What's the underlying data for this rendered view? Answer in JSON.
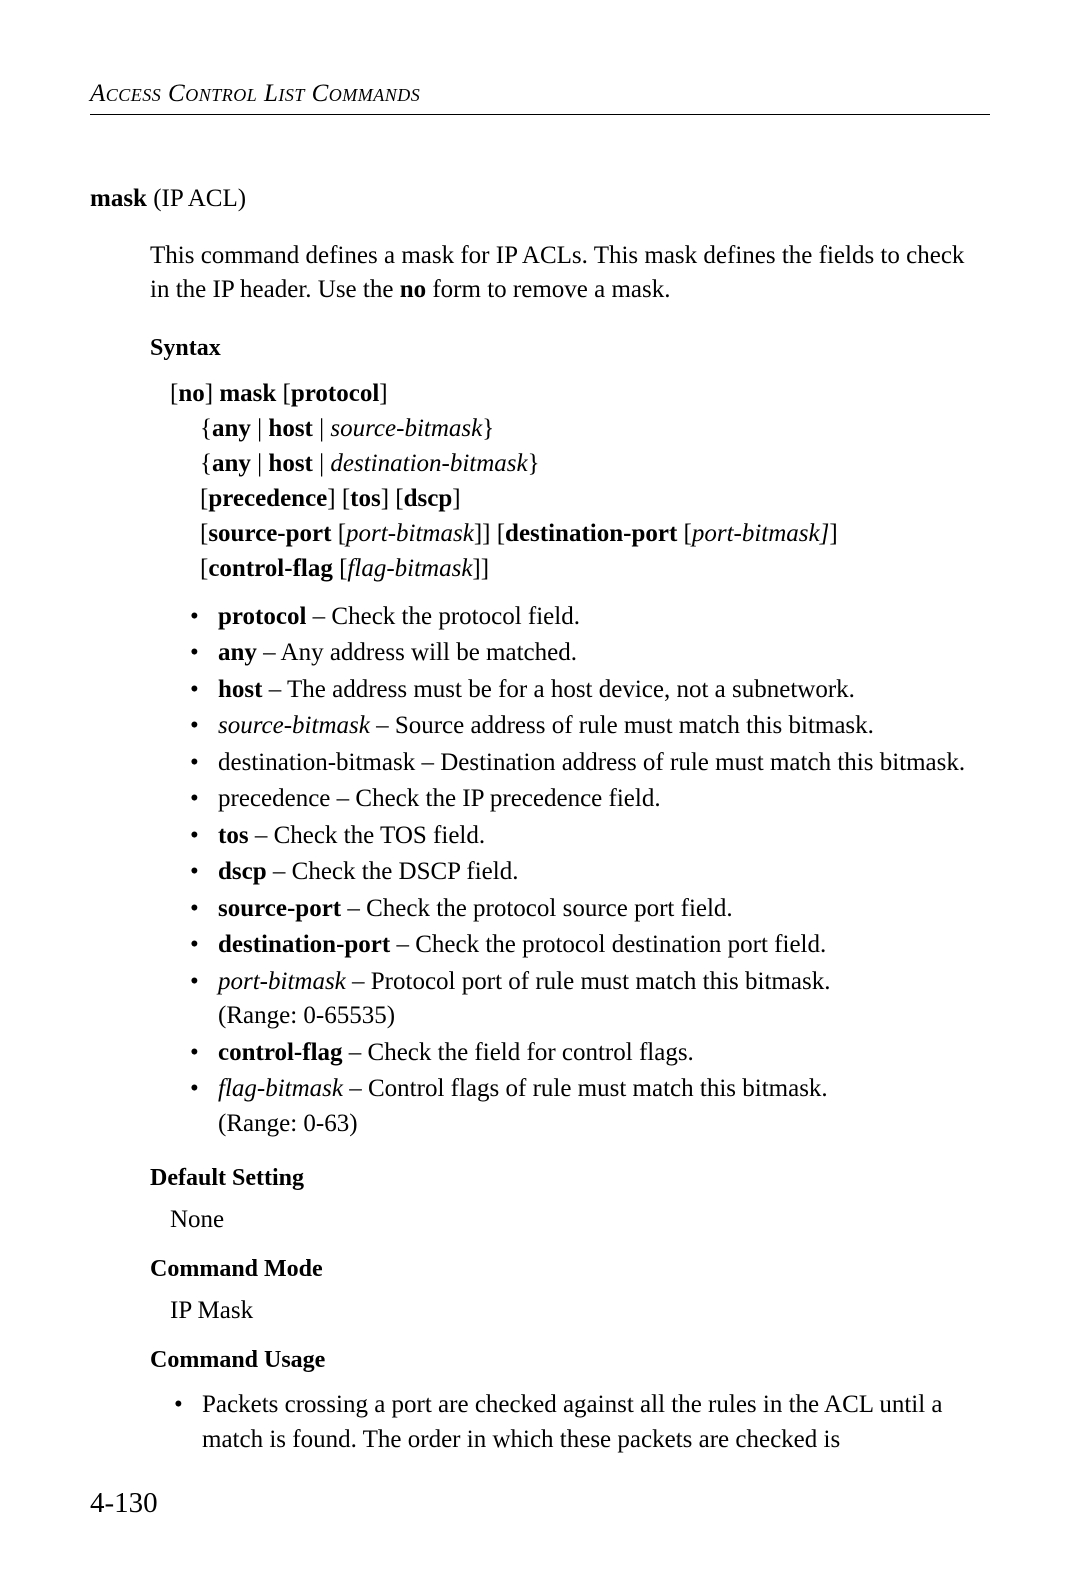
{
  "running_head": "Access Control List Commands",
  "title": {
    "cmd": "mask",
    "qual": " (IP ACL)"
  },
  "description_pre": "This command defines a mask for IP ACLs. This mask defines the fields to check in the IP header. Use the ",
  "description_bold": "no",
  "description_post": " form to remove a mask.",
  "sections": {
    "syntax": "Syntax",
    "default": "Default Setting",
    "mode": "Command Mode",
    "usage": "Command Usage"
  },
  "syntax": {
    "l1_a": "[",
    "l1_b": "no",
    "l1_c": "] ",
    "l1_d": "mask",
    "l1_e": " [",
    "l1_f": "protocol",
    "l1_g": "]",
    "l2_a": "{",
    "l2_b": "any",
    "l2_c": " | ",
    "l2_d": "host",
    "l2_e": " | ",
    "l2_f": "source-bitmask",
    "l2_g": "}",
    "l3_a": "{",
    "l3_b": "any",
    "l3_c": " | ",
    "l3_d": "host",
    "l3_e": " | ",
    "l3_f": "destination-bitmask",
    "l3_g": "}",
    "l4_a": "[",
    "l4_b": "precedence",
    "l4_c": "] [",
    "l4_d": "tos",
    "l4_e": "] [",
    "l4_f": "dscp",
    "l4_g": "]",
    "l5_a": "[",
    "l5_b": "source-port",
    "l5_c": " [",
    "l5_d": "port-bitmask",
    "l5_e": "]] [",
    "l5_f": "destination-port",
    "l5_g": " [",
    "l5_h": "port-bitmask]",
    "l5_i": "]",
    "l6_a": "[",
    "l6_b": "control-flag",
    "l6_c": " [",
    "l6_d": "flag-bitmask",
    "l6_e": "]]"
  },
  "params": [
    {
      "term_b": "protocol",
      "term_i": "",
      "desc": " – Check the protocol field."
    },
    {
      "term_b": "any",
      "term_i": "",
      "desc": " – Any address will be matched."
    },
    {
      "term_b": "host",
      "term_i": "",
      "desc": " – The address must be for a host device, not a subnetwork."
    },
    {
      "term_b": "",
      "term_i": "source-bitmask",
      "desc": " – Source address of rule must match this bitmask."
    },
    {
      "term_b": "",
      "term_i": "",
      "desc": "destination-bitmask – Destination address of rule must match this bitmask."
    },
    {
      "term_b": "",
      "term_i": "",
      "desc": "precedence – Check the IP precedence field."
    },
    {
      "term_b": "tos",
      "term_i": "",
      "desc": " – Check the TOS field."
    },
    {
      "term_b": "dscp",
      "term_i": "",
      "desc": " – Check the DSCP field."
    },
    {
      "term_b": "source-port",
      "term_i": "",
      "desc": " – Check the protocol source port field."
    },
    {
      "term_b": "destination-port",
      "term_i": "",
      "desc": " – Check the protocol destination port field."
    },
    {
      "term_b": "",
      "term_i": "port-bitmask",
      "desc": " – Protocol port of rule must match this bitmask.",
      "note": "(Range: 0-65535)"
    },
    {
      "term_b": "control-flag",
      "term_i": "",
      "desc": " – Check the field for control flags."
    },
    {
      "term_b": "",
      "term_i": "flag-bitmask",
      "desc": " – Control flags of rule must match this bitmask.",
      "note": "(Range: 0-63)"
    }
  ],
  "default_value": "None",
  "mode_value": "IP Mask",
  "usage": [
    "Packets crossing a port are checked against all the rules in the ACL until a match is found. The order in which these packets are checked is"
  ],
  "page_number": "4-130"
}
